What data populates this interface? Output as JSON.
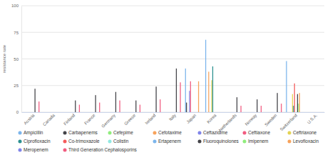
{
  "chart_data": {
    "type": "bar",
    "y_label": "resistance rate",
    "categories": [
      "Austria",
      "Canada",
      "Finland",
      "France",
      "Germany",
      "Greece",
      "Ireland",
      "Italy",
      "Japan",
      "Korea",
      "Netherlands",
      "Norway",
      "Sweden",
      "Switzerland",
      "U.S.A."
    ],
    "ylim": [
      0,
      100
    ],
    "yticks": [
      0,
      25,
      50,
      75,
      100
    ],
    "grid": true,
    "legend": "bottom",
    "series": [
      {
        "name": "Ampicillin",
        "color": "#7cb5ec",
        "values": [
          null,
          null,
          null,
          null,
          null,
          null,
          null,
          null,
          41,
          68,
          null,
          null,
          null,
          48,
          null
        ]
      },
      {
        "name": "Carbapenems",
        "color": "#434348",
        "values": [
          null,
          null,
          null,
          null,
          null,
          null,
          null,
          null,
          9,
          null,
          null,
          null,
          null,
          null,
          null
        ]
      },
      {
        "name": "Cefepime",
        "color": "#90ed7d",
        "values": [
          null,
          null,
          null,
          null,
          null,
          null,
          null,
          null,
          null,
          null,
          null,
          null,
          null,
          null,
          null
        ]
      },
      {
        "name": "Cefotaxime",
        "color": "#f7a35c",
        "values": [
          null,
          null,
          null,
          null,
          null,
          null,
          null,
          null,
          null,
          38,
          null,
          null,
          null,
          null,
          null
        ]
      },
      {
        "name": "Ceftazidime",
        "color": "#8085e9",
        "values": [
          null,
          null,
          null,
          null,
          null,
          null,
          null,
          null,
          20,
          null,
          null,
          null,
          null,
          null,
          null
        ]
      },
      {
        "name": "Ceftiaxone",
        "color": "#f15c80",
        "values": [
          null,
          null,
          null,
          null,
          null,
          null,
          null,
          null,
          29,
          null,
          null,
          null,
          null,
          null,
          null
        ]
      },
      {
        "name": "Ceftriaxone",
        "color": "#e4d354",
        "values": [
          null,
          null,
          null,
          null,
          null,
          null,
          null,
          null,
          null,
          30,
          null,
          null,
          null,
          17,
          null
        ]
      },
      {
        "name": "Ciprofloxacin",
        "color": "#2b908f",
        "values": [
          null,
          null,
          null,
          null,
          null,
          null,
          null,
          null,
          null,
          43,
          null,
          null,
          null,
          6,
          null
        ]
      },
      {
        "name": "Co-trimoxazole",
        "color": "#f45b5b",
        "values": [
          null,
          null,
          null,
          null,
          null,
          null,
          null,
          null,
          null,
          null,
          null,
          null,
          null,
          27,
          null
        ]
      },
      {
        "name": "Colistin",
        "color": "#91e8e1",
        "values": [
          null,
          null,
          null,
          null,
          null,
          null,
          null,
          null,
          null,
          null,
          null,
          null,
          null,
          null,
          null
        ]
      },
      {
        "name": "Ertapenem",
        "color": "#7cb5ec",
        "values": [
          null,
          null,
          null,
          null,
          null,
          null,
          null,
          null,
          null,
          null,
          null,
          null,
          null,
          null,
          null
        ]
      },
      {
        "name": "Fluoroquinolones",
        "color": "#434348",
        "values": [
          22,
          null,
          11,
          16,
          19,
          11,
          24,
          41,
          null,
          null,
          14,
          12,
          18,
          17,
          null
        ]
      },
      {
        "name": "Imipenem",
        "color": "#90ed7d",
        "values": [
          null,
          null,
          null,
          null,
          null,
          null,
          null,
          null,
          null,
          null,
          null,
          null,
          null,
          8,
          null
        ]
      },
      {
        "name": "Levofloxacin",
        "color": "#f7a35c",
        "values": [
          null,
          null,
          null,
          null,
          null,
          null,
          null,
          null,
          29,
          null,
          null,
          null,
          null,
          18,
          null
        ]
      },
      {
        "name": "Meropenem",
        "color": "#8085e9",
        "values": [
          null,
          null,
          null,
          null,
          null,
          null,
          null,
          null,
          null,
          null,
          null,
          null,
          null,
          null,
          null
        ]
      },
      {
        "name": "Third Generation Cephalosporins",
        "color": "#f15c80",
        "values": [
          10,
          null,
          7,
          9,
          11,
          7,
          12,
          28,
          null,
          null,
          6,
          6,
          8,
          null,
          null
        ]
      }
    ]
  }
}
